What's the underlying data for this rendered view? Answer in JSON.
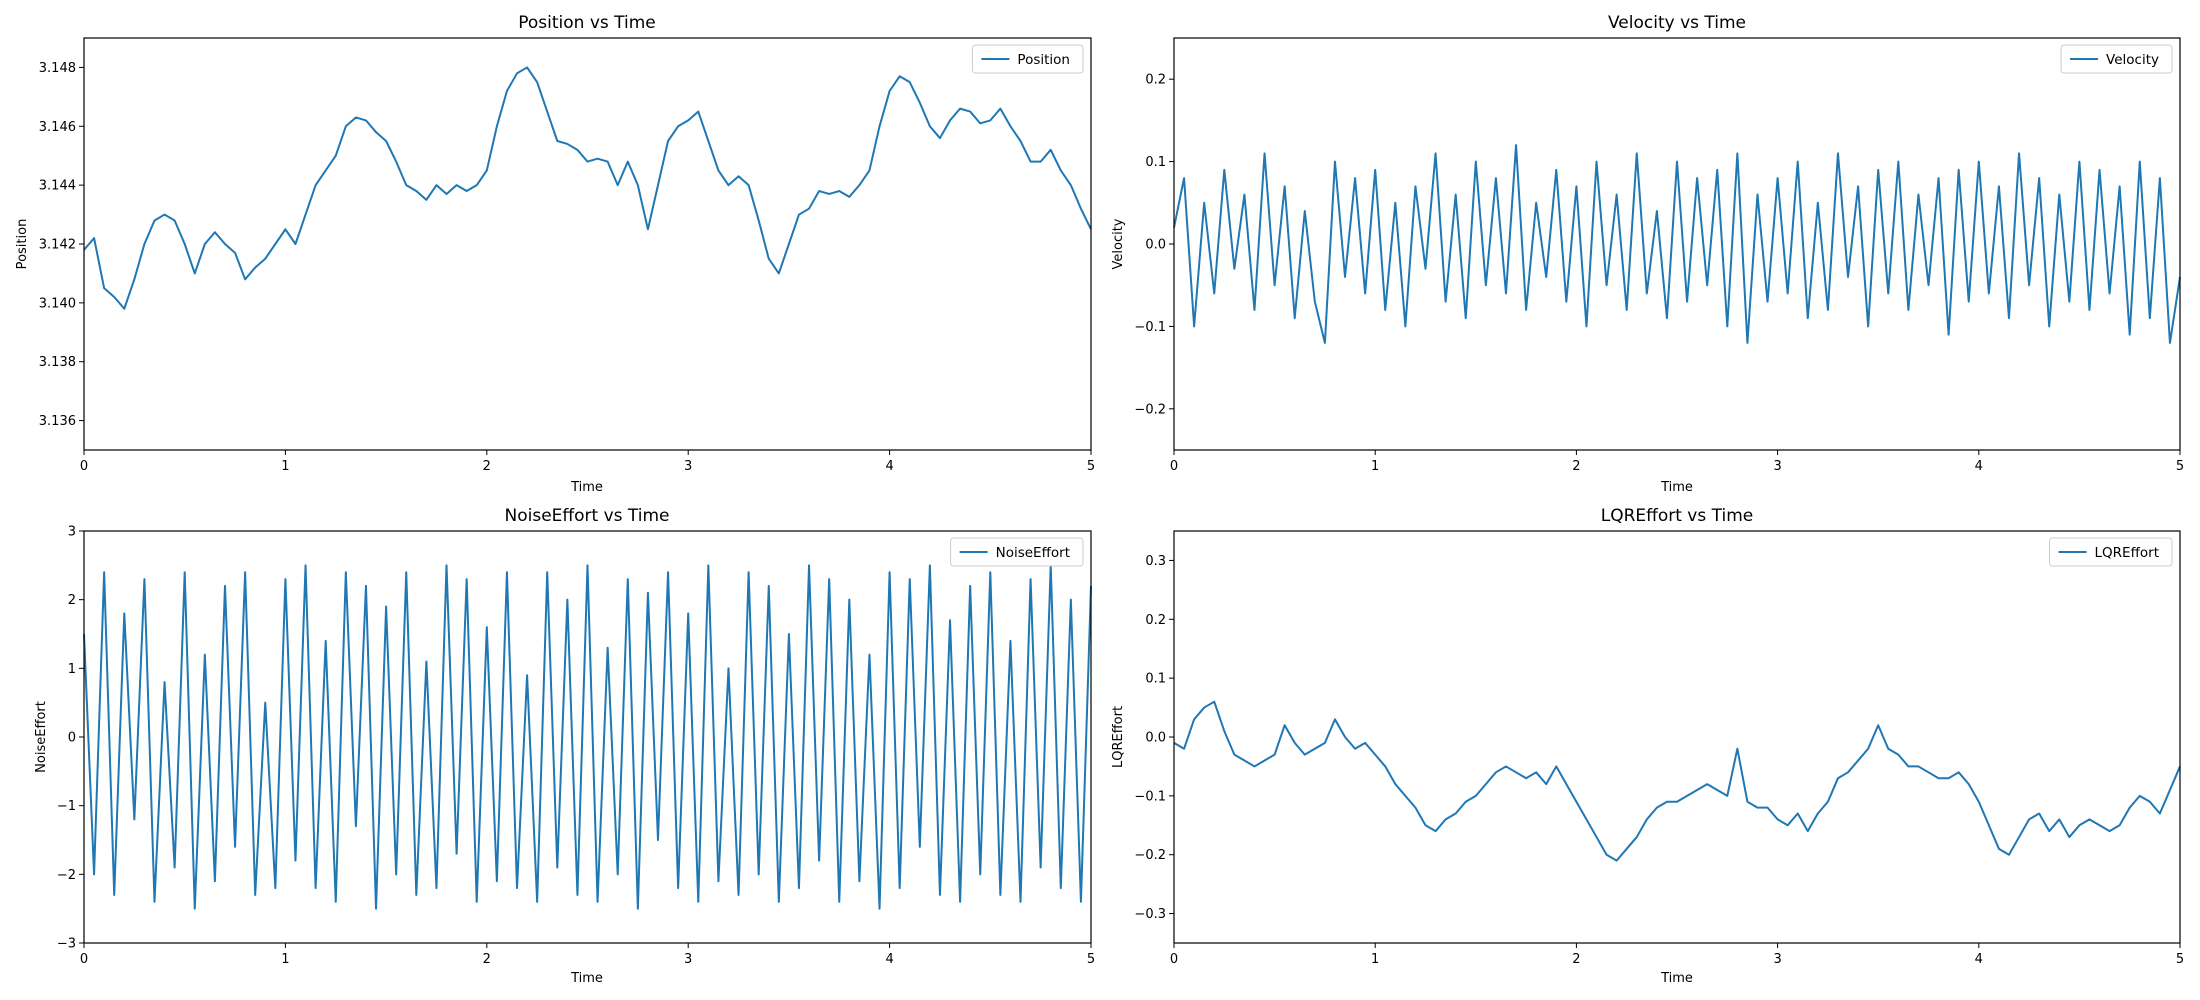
{
  "figure": {
    "background": "#ffffff",
    "line_color": "#1f77b4"
  },
  "chart_data": [
    {
      "type": "line",
      "title": "Position vs Time",
      "xlabel": "Time",
      "ylabel": "Position",
      "xlim": [
        0,
        5
      ],
      "ylim": [
        3.135,
        3.149
      ],
      "xticks": [
        0,
        1,
        2,
        3,
        4,
        5
      ],
      "xtick_labels": [
        "0",
        "1",
        "2",
        "3",
        "4",
        "5"
      ],
      "yticks": [
        3.136,
        3.138,
        3.14,
        3.142,
        3.144,
        3.146,
        3.148
      ],
      "ytick_labels": [
        "3.136",
        "3.138",
        "3.140",
        "3.142",
        "3.144",
        "3.146",
        "3.148"
      ],
      "legend": "top-right",
      "grid": false,
      "series": [
        {
          "name": "Position",
          "color": "#1f77b4",
          "x": [
            0,
            0.05,
            0.1,
            0.15,
            0.2,
            0.25,
            0.3,
            0.35,
            0.4,
            0.45,
            0.5,
            0.55,
            0.6,
            0.65,
            0.7,
            0.75,
            0.8,
            0.85,
            0.9,
            0.95,
            1.0,
            1.05,
            1.1,
            1.15,
            1.2,
            1.25,
            1.3,
            1.35,
            1.4,
            1.45,
            1.5,
            1.55,
            1.6,
            1.65,
            1.7,
            1.75,
            1.8,
            1.85,
            1.9,
            1.95,
            2.0,
            2.05,
            2.1,
            2.15,
            2.2,
            2.25,
            2.3,
            2.35,
            2.4,
            2.45,
            2.5,
            2.55,
            2.6,
            2.65,
            2.7,
            2.75,
            2.8,
            2.85,
            2.9,
            2.95,
            3.0,
            3.05,
            3.1,
            3.15,
            3.2,
            3.25,
            3.3,
            3.35,
            3.4,
            3.45,
            3.5,
            3.55,
            3.6,
            3.65,
            3.7,
            3.75,
            3.8,
            3.85,
            3.9,
            3.95,
            4.0,
            4.05,
            4.1,
            4.15,
            4.2,
            4.25,
            4.3,
            4.35,
            4.4,
            4.45,
            4.5,
            4.55,
            4.6,
            4.65,
            4.7,
            4.75,
            4.8,
            4.85,
            4.9,
            4.95,
            5.0
          ],
          "y": [
            3.1418,
            3.1422,
            3.1405,
            3.1402,
            3.1398,
            3.1408,
            3.142,
            3.1428,
            3.143,
            3.1428,
            3.142,
            3.141,
            3.142,
            3.1424,
            3.142,
            3.1417,
            3.1408,
            3.1412,
            3.1415,
            3.142,
            3.1425,
            3.142,
            3.143,
            3.144,
            3.1445,
            3.145,
            3.146,
            3.1463,
            3.1462,
            3.1458,
            3.1455,
            3.1448,
            3.144,
            3.1438,
            3.1435,
            3.144,
            3.1437,
            3.144,
            3.1438,
            3.144,
            3.1445,
            3.146,
            3.1472,
            3.1478,
            3.148,
            3.1475,
            3.1465,
            3.1455,
            3.1454,
            3.1452,
            3.1448,
            3.1449,
            3.1448,
            3.144,
            3.1448,
            3.144,
            3.1425,
            3.144,
            3.1455,
            3.146,
            3.1462,
            3.1465,
            3.1455,
            3.1445,
            3.144,
            3.1443,
            3.144,
            3.1428,
            3.1415,
            3.141,
            3.142,
            3.143,
            3.1432,
            3.1438,
            3.1437,
            3.1438,
            3.1436,
            3.144,
            3.1445,
            3.146,
            3.1472,
            3.1477,
            3.1475,
            3.1468,
            3.146,
            3.1456,
            3.1462,
            3.1466,
            3.1465,
            3.1461,
            3.1462,
            3.1466,
            3.146,
            3.1455,
            3.1448,
            3.1448,
            3.1452,
            3.1445,
            3.144,
            3.1432,
            3.1425
          ]
        }
      ]
    },
    {
      "type": "line",
      "title": "Velocity vs Time",
      "xlabel": "Time",
      "ylabel": "Velocity",
      "xlim": [
        0,
        5
      ],
      "ylim": [
        -0.25,
        0.25
      ],
      "xticks": [
        0,
        1,
        2,
        3,
        4,
        5
      ],
      "xtick_labels": [
        "0",
        "1",
        "2",
        "3",
        "4",
        "5"
      ],
      "yticks": [
        -0.2,
        -0.1,
        0.0,
        0.1,
        0.2
      ],
      "ytick_labels": [
        "−0.2",
        "−0.1",
        "0.0",
        "0.1",
        "0.2"
      ],
      "legend": "top-right",
      "grid": false,
      "series": [
        {
          "name": "Velocity",
          "color": "#1f77b4",
          "x": [
            0,
            0.05,
            0.1,
            0.15,
            0.2,
            0.25,
            0.3,
            0.35,
            0.4,
            0.45,
            0.5,
            0.55,
            0.6,
            0.65,
            0.7,
            0.75,
            0.8,
            0.85,
            0.9,
            0.95,
            1.0,
            1.05,
            1.1,
            1.15,
            1.2,
            1.25,
            1.3,
            1.35,
            1.4,
            1.45,
            1.5,
            1.55,
            1.6,
            1.65,
            1.7,
            1.75,
            1.8,
            1.85,
            1.9,
            1.95,
            2.0,
            2.05,
            2.1,
            2.15,
            2.2,
            2.25,
            2.3,
            2.35,
            2.4,
            2.45,
            2.5,
            2.55,
            2.6,
            2.65,
            2.7,
            2.75,
            2.8,
            2.85,
            2.9,
            2.95,
            3.0,
            3.05,
            3.1,
            3.15,
            3.2,
            3.25,
            3.3,
            3.35,
            3.4,
            3.45,
            3.5,
            3.55,
            3.6,
            3.65,
            3.7,
            3.75,
            3.8,
            3.85,
            3.9,
            3.95,
            4.0,
            4.05,
            4.1,
            4.15,
            4.2,
            4.25,
            4.3,
            4.35,
            4.4,
            4.45,
            4.5,
            4.55,
            4.6,
            4.65,
            4.7,
            4.75,
            4.8,
            4.85,
            4.9,
            4.95,
            5.0
          ],
          "y": [
            0.02,
            0.08,
            -0.1,
            0.05,
            -0.06,
            0.09,
            -0.03,
            0.06,
            -0.08,
            0.11,
            -0.05,
            0.07,
            -0.09,
            0.04,
            -0.07,
            -0.12,
            0.1,
            -0.04,
            0.08,
            -0.06,
            0.09,
            -0.08,
            0.05,
            -0.1,
            0.07,
            -0.03,
            0.11,
            -0.07,
            0.06,
            -0.09,
            0.1,
            -0.05,
            0.08,
            -0.06,
            0.12,
            -0.08,
            0.05,
            -0.04,
            0.09,
            -0.07,
            0.07,
            -0.1,
            0.1,
            -0.05,
            0.06,
            -0.08,
            0.11,
            -0.06,
            0.04,
            -0.09,
            0.1,
            -0.07,
            0.08,
            -0.05,
            0.09,
            -0.1,
            0.11,
            -0.12,
            0.06,
            -0.07,
            0.08,
            -0.06,
            0.1,
            -0.09,
            0.05,
            -0.08,
            0.11,
            -0.04,
            0.07,
            -0.1,
            0.09,
            -0.06,
            0.1,
            -0.08,
            0.06,
            -0.05,
            0.08,
            -0.11,
            0.09,
            -0.07,
            0.1,
            -0.06,
            0.07,
            -0.09,
            0.11,
            -0.05,
            0.08,
            -0.1,
            0.06,
            -0.07,
            0.1,
            -0.08,
            0.09,
            -0.06,
            0.07,
            -0.11,
            0.1,
            -0.09,
            0.08,
            -0.12,
            -0.04
          ]
        }
      ]
    },
    {
      "type": "line",
      "title": "NoiseEffort vs Time",
      "xlabel": "Time",
      "ylabel": "NoiseEffort",
      "xlim": [
        0,
        5
      ],
      "ylim": [
        -3,
        3
      ],
      "xticks": [
        0,
        1,
        2,
        3,
        4,
        5
      ],
      "xtick_labels": [
        "0",
        "1",
        "2",
        "3",
        "4",
        "5"
      ],
      "yticks": [
        -3,
        -2,
        -1,
        0,
        1,
        2,
        3
      ],
      "ytick_labels": [
        "−3",
        "−2",
        "−1",
        "0",
        "1",
        "2",
        "3"
      ],
      "legend": "top-right",
      "grid": false,
      "series": [
        {
          "name": "NoiseEffort",
          "color": "#1f77b4",
          "x": [
            0,
            0.05,
            0.1,
            0.15,
            0.2,
            0.25,
            0.3,
            0.35,
            0.4,
            0.45,
            0.5,
            0.55,
            0.6,
            0.65,
            0.7,
            0.75,
            0.8,
            0.85,
            0.9,
            0.95,
            1.0,
            1.05,
            1.1,
            1.15,
            1.2,
            1.25,
            1.3,
            1.35,
            1.4,
            1.45,
            1.5,
            1.55,
            1.6,
            1.65,
            1.7,
            1.75,
            1.8,
            1.85,
            1.9,
            1.95,
            2.0,
            2.05,
            2.1,
            2.15,
            2.2,
            2.25,
            2.3,
            2.35,
            2.4,
            2.45,
            2.5,
            2.55,
            2.6,
            2.65,
            2.7,
            2.75,
            2.8,
            2.85,
            2.9,
            2.95,
            3.0,
            3.05,
            3.1,
            3.15,
            3.2,
            3.25,
            3.3,
            3.35,
            3.4,
            3.45,
            3.5,
            3.55,
            3.6,
            3.65,
            3.7,
            3.75,
            3.8,
            3.85,
            3.9,
            3.95,
            4.0,
            4.05,
            4.1,
            4.15,
            4.2,
            4.25,
            4.3,
            4.35,
            4.4,
            4.45,
            4.5,
            4.55,
            4.6,
            4.65,
            4.7,
            4.75,
            4.8,
            4.85,
            4.9,
            4.95,
            5.0
          ],
          "y": [
            1.5,
            -2.0,
            2.4,
            -2.3,
            1.8,
            -1.2,
            2.3,
            -2.4,
            0.8,
            -1.9,
            2.4,
            -2.5,
            1.2,
            -2.1,
            2.2,
            -1.6,
            2.4,
            -2.3,
            0.5,
            -2.2,
            2.3,
            -1.8,
            2.5,
            -2.2,
            1.4,
            -2.4,
            2.4,
            -1.3,
            2.2,
            -2.5,
            1.9,
            -2.0,
            2.4,
            -2.3,
            1.1,
            -2.2,
            2.5,
            -1.7,
            2.3,
            -2.4,
            1.6,
            -2.1,
            2.4,
            -2.2,
            0.9,
            -2.4,
            2.4,
            -1.9,
            2.0,
            -2.3,
            2.5,
            -2.4,
            1.3,
            -2.0,
            2.3,
            -2.5,
            2.1,
            -1.5,
            2.4,
            -2.2,
            1.8,
            -2.4,
            2.5,
            -2.1,
            1.0,
            -2.3,
            2.4,
            -2.0,
            2.2,
            -2.4,
            1.5,
            -2.2,
            2.5,
            -1.8,
            2.3,
            -2.4,
            2.0,
            -2.1,
            1.2,
            -2.5,
            2.4,
            -2.2,
            2.3,
            -1.6,
            2.5,
            -2.3,
            1.7,
            -2.4,
            2.2,
            -2.0,
            2.4,
            -2.3,
            1.4,
            -2.4,
            2.3,
            -1.9,
            2.5,
            -2.2,
            2.0,
            -2.4,
            2.2
          ]
        }
      ]
    },
    {
      "type": "line",
      "title": "LQREffort vs Time",
      "xlabel": "Time",
      "ylabel": "LQREffort",
      "xlim": [
        0,
        5
      ],
      "ylim": [
        -0.35,
        0.35
      ],
      "xticks": [
        0,
        1,
        2,
        3,
        4,
        5
      ],
      "xtick_labels": [
        "0",
        "1",
        "2",
        "3",
        "4",
        "5"
      ],
      "yticks": [
        -0.3,
        -0.2,
        -0.1,
        0.0,
        0.1,
        0.2,
        0.3
      ],
      "ytick_labels": [
        "−0.3",
        "−0.2",
        "−0.1",
        "0.0",
        "0.1",
        "0.2",
        "0.3"
      ],
      "legend": "top-right",
      "grid": false,
      "series": [
        {
          "name": "LQREffort",
          "color": "#1f77b4",
          "x": [
            0,
            0.05,
            0.1,
            0.15,
            0.2,
            0.25,
            0.3,
            0.35,
            0.4,
            0.45,
            0.5,
            0.55,
            0.6,
            0.65,
            0.7,
            0.75,
            0.8,
            0.85,
            0.9,
            0.95,
            1.0,
            1.05,
            1.1,
            1.15,
            1.2,
            1.25,
            1.3,
            1.35,
            1.4,
            1.45,
            1.5,
            1.55,
            1.6,
            1.65,
            1.7,
            1.75,
            1.8,
            1.85,
            1.9,
            1.95,
            2.0,
            2.05,
            2.1,
            2.15,
            2.2,
            2.25,
            2.3,
            2.35,
            2.4,
            2.45,
            2.5,
            2.55,
            2.6,
            2.65,
            2.7,
            2.75,
            2.8,
            2.85,
            2.9,
            2.95,
            3.0,
            3.05,
            3.1,
            3.15,
            3.2,
            3.25,
            3.3,
            3.35,
            3.4,
            3.45,
            3.5,
            3.55,
            3.6,
            3.65,
            3.7,
            3.75,
            3.8,
            3.85,
            3.9,
            3.95,
            4.0,
            4.05,
            4.1,
            4.15,
            4.2,
            4.25,
            4.3,
            4.35,
            4.4,
            4.45,
            4.5,
            4.55,
            4.6,
            4.65,
            4.7,
            4.75,
            4.8,
            4.85,
            4.9,
            4.95,
            5.0
          ],
          "y": [
            -0.01,
            -0.02,
            0.03,
            0.05,
            0.06,
            0.01,
            -0.03,
            -0.04,
            -0.05,
            -0.04,
            -0.03,
            0.02,
            -0.01,
            -0.03,
            -0.02,
            -0.01,
            0.03,
            0.0,
            -0.02,
            -0.01,
            -0.03,
            -0.05,
            -0.08,
            -0.1,
            -0.12,
            -0.15,
            -0.16,
            -0.14,
            -0.13,
            -0.11,
            -0.1,
            -0.08,
            -0.06,
            -0.05,
            -0.06,
            -0.07,
            -0.06,
            -0.08,
            -0.05,
            -0.08,
            -0.11,
            -0.14,
            -0.17,
            -0.2,
            -0.21,
            -0.19,
            -0.17,
            -0.14,
            -0.12,
            -0.11,
            -0.11,
            -0.1,
            -0.09,
            -0.08,
            -0.09,
            -0.1,
            -0.02,
            -0.11,
            -0.12,
            -0.12,
            -0.14,
            -0.15,
            -0.13,
            -0.16,
            -0.13,
            -0.11,
            -0.07,
            -0.06,
            -0.04,
            -0.02,
            0.02,
            -0.02,
            -0.03,
            -0.05,
            -0.05,
            -0.06,
            -0.07,
            -0.07,
            -0.06,
            -0.08,
            -0.11,
            -0.15,
            -0.19,
            -0.2,
            -0.17,
            -0.14,
            -0.13,
            -0.16,
            -0.14,
            -0.17,
            -0.15,
            -0.14,
            -0.15,
            -0.16,
            -0.15,
            -0.12,
            -0.1,
            -0.11,
            -0.13,
            -0.09,
            -0.05
          ]
        }
      ]
    }
  ]
}
